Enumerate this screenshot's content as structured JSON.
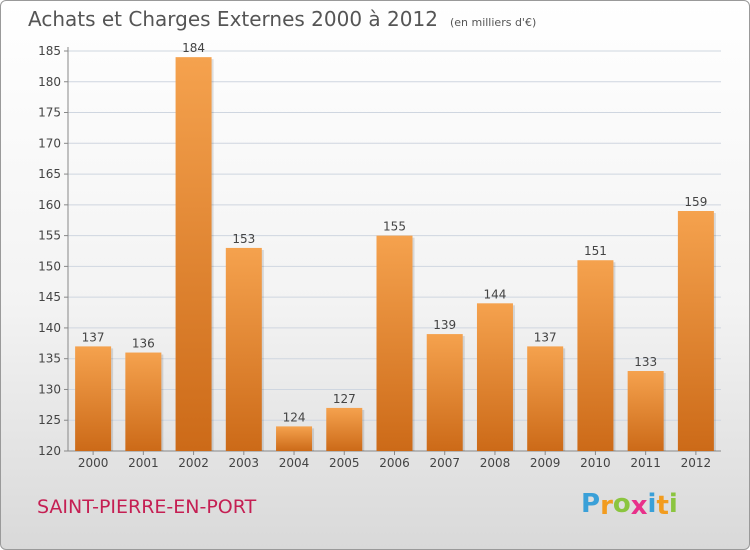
{
  "title": "Achats et Charges Externes 2000 à 2012",
  "unit": "(en milliers d'€)",
  "commune": "SAINT-PIERRE-EN-PORT",
  "logo": {
    "text": "Proxiti",
    "letters": [
      {
        "char": "P",
        "color": "#3aa0d8"
      },
      {
        "char": "r",
        "color": "#f29c1f"
      },
      {
        "char": "o",
        "color": "#8bc53f"
      },
      {
        "char": "x",
        "color": "#e8308a"
      },
      {
        "char": "i",
        "color": "#3aa0d8"
      },
      {
        "char": "t",
        "color": "#f29c1f"
      },
      {
        "char": "i",
        "color": "#8bc53f"
      }
    ]
  },
  "colors": {
    "bar_light": "#f5a24e",
    "bar_dark": "#cc6a18",
    "grid": "#cfd6e0",
    "axis": "#888888",
    "text": "#444444",
    "commune": "#c51f53"
  },
  "chart_data": {
    "type": "bar",
    "categories": [
      "2000",
      "2001",
      "2002",
      "2003",
      "2004",
      "2005",
      "2006",
      "2007",
      "2008",
      "2009",
      "2010",
      "2011",
      "2012"
    ],
    "values": [
      137,
      136,
      184,
      153,
      124,
      127,
      155,
      139,
      144,
      137,
      151,
      133,
      159
    ],
    "data_labels": [
      "137",
      "136",
      "184",
      "153",
      "124",
      "127",
      "155",
      "139",
      "144",
      "137",
      "151",
      "133",
      "159"
    ],
    "ylim": [
      120,
      185
    ],
    "yticks": [
      120,
      125,
      130,
      135,
      140,
      145,
      150,
      155,
      160,
      165,
      170,
      175,
      180,
      185
    ],
    "grid": true,
    "xlabel": "",
    "ylabel": ""
  }
}
